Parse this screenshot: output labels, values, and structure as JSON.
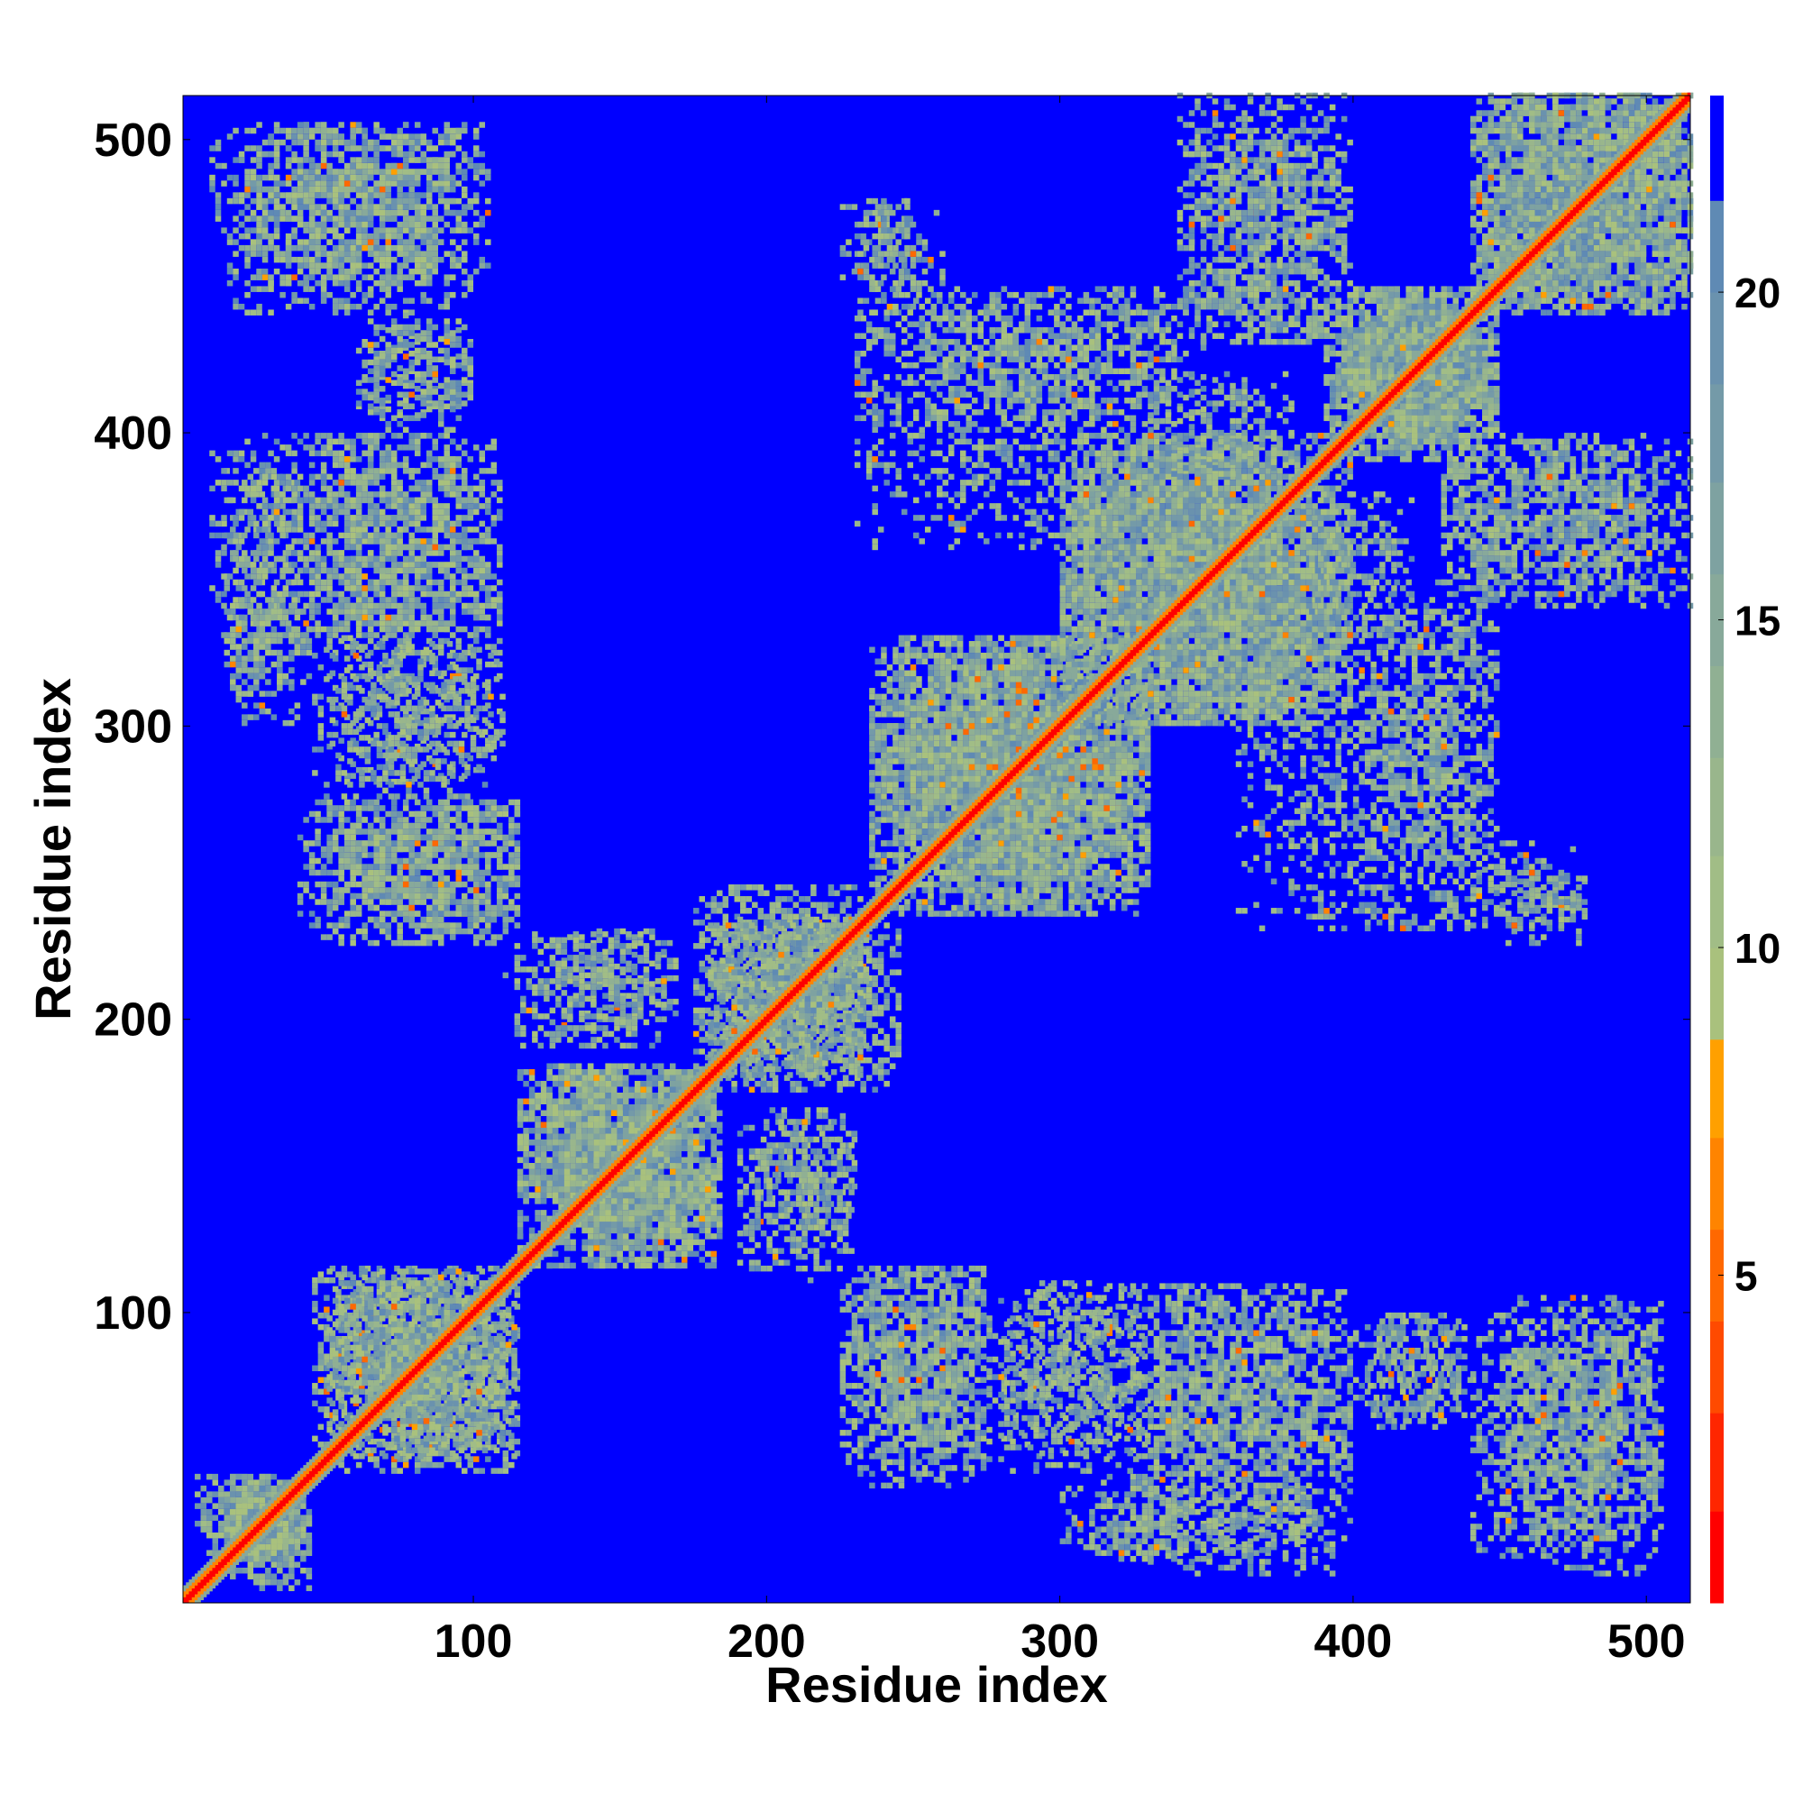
{
  "chart_data": {
    "type": "heatmap",
    "title": "",
    "xlabel": "Residue index",
    "ylabel": "Residue index",
    "n_residues": 515,
    "xlim": [
      1,
      515
    ],
    "ylim": [
      1,
      515
    ],
    "x_ticks": [
      100,
      200,
      300,
      400,
      500
    ],
    "y_ticks": [
      100,
      200,
      300,
      400,
      500
    ],
    "grid": false,
    "background_color": "#0000ff",
    "colorbar": {
      "ticks": [
        5,
        10,
        15,
        20
      ],
      "range": [
        0,
        23
      ],
      "bands": [
        {
          "from": 0.0,
          "to": 1.4,
          "color": "#ff0000"
        },
        {
          "from": 1.4,
          "to": 2.9,
          "color": "#ff2600"
        },
        {
          "from": 2.9,
          "to": 4.3,
          "color": "#ff4a00"
        },
        {
          "from": 4.3,
          "to": 5.7,
          "color": "#ff6800"
        },
        {
          "from": 5.7,
          "to": 7.1,
          "color": "#ff8400"
        },
        {
          "from": 7.1,
          "to": 8.6,
          "color": "#ffa000"
        },
        {
          "from": 8.6,
          "to": 10.0,
          "color": "#a9c17d"
        },
        {
          "from": 10.0,
          "to": 11.4,
          "color": "#a1bd86"
        },
        {
          "from": 11.4,
          "to": 12.9,
          "color": "#99b68c"
        },
        {
          "from": 12.9,
          "to": 14.3,
          "color": "#90b093"
        },
        {
          "from": 14.3,
          "to": 15.7,
          "color": "#88a99a"
        },
        {
          "from": 15.7,
          "to": 17.1,
          "color": "#7ea2a1"
        },
        {
          "from": 17.1,
          "to": 18.6,
          "color": "#749aa8"
        },
        {
          "from": 18.6,
          "to": 20.0,
          "color": "#6a92ae"
        },
        {
          "from": 20.0,
          "to": 21.4,
          "color": "#5f8ab4"
        },
        {
          "from": 21.4,
          "to": 23.0,
          "color": "#0000ff"
        }
      ]
    },
    "diagonal_color": "#ff0000",
    "contact_color": "#88a99a",
    "hot_color": "#ff8400",
    "domains": [
      {
        "start": 1,
        "end": 45
      },
      {
        "start": 45,
        "end": 115
      },
      {
        "start": 115,
        "end": 235
      },
      {
        "start": 235,
        "end": 400
      },
      {
        "start": 400,
        "end": 515
      }
    ],
    "contact_regions": [
      {
        "x": [
          5,
          45
        ],
        "y": [
          15,
          45
        ],
        "density": 0.8
      },
      {
        "x": [
          45,
          115
        ],
        "y": [
          50,
          115
        ],
        "density": 0.85
      },
      {
        "x": [
          115,
          185
        ],
        "y": [
          115,
          185
        ],
        "density": 0.85
      },
      {
        "x": [
          175,
          235
        ],
        "y": [
          180,
          245
        ],
        "density": 0.8
      },
      {
        "x": [
          235,
          330
        ],
        "y": [
          235,
          330
        ],
        "density": 0.85
      },
      {
        "x": [
          300,
          400
        ],
        "y": [
          300,
          400
        ],
        "density": 0.85
      },
      {
        "x": [
          390,
          450
        ],
        "y": [
          390,
          450
        ],
        "density": 0.8
      },
      {
        "x": [
          440,
          515
        ],
        "y": [
          440,
          515
        ],
        "density": 0.8
      },
      {
        "x": [
          50,
          115
        ],
        "y": [
          225,
          275
        ],
        "density": 0.55
      },
      {
        "x": [
          50,
          110
        ],
        "y": [
          280,
          400
        ],
        "density": 0.45
      },
      {
        "x": [
          15,
          40
        ],
        "y": [
          300,
          390
        ],
        "density": 0.45
      },
      {
        "x": [
          10,
          100
        ],
        "y": [
          440,
          505
        ],
        "density": 0.5
      },
      {
        "x": [
          60,
          100
        ],
        "y": [
          400,
          435
        ],
        "density": 0.45
      },
      {
        "x": [
          130,
          170
        ],
        "y": [
          195,
          230
        ],
        "density": 0.5
      },
      {
        "x": [
          190,
          230
        ],
        "y": [
          110,
          165
        ],
        "density": 0.5
      },
      {
        "x": [
          225,
          275
        ],
        "y": [
          40,
          115
        ],
        "density": 0.6
      },
      {
        "x": [
          275,
          330
        ],
        "y": [
          45,
          110
        ],
        "density": 0.45
      },
      {
        "x": [
          330,
          400
        ],
        "y": [
          10,
          110
        ],
        "density": 0.55
      },
      {
        "x": [
          405,
          440
        ],
        "y": [
          60,
          100
        ],
        "density": 0.45
      },
      {
        "x": [
          450,
          505
        ],
        "y": [
          20,
          105
        ],
        "density": 0.6
      },
      {
        "x": [
          310,
          340
        ],
        "y": [
          15,
          45
        ],
        "density": 0.45
      },
      {
        "x": [
          400,
          450
        ],
        "y": [
          230,
          350
        ],
        "density": 0.4
      },
      {
        "x": [
          450,
          480
        ],
        "y": [
          230,
          250
        ],
        "density": 0.4
      },
      {
        "x": [
          430,
          515
        ],
        "y": [
          340,
          400
        ],
        "density": 0.5
      },
      {
        "x": [
          230,
          340
        ],
        "y": [
          360,
          450
        ],
        "density": 0.35
      },
      {
        "x": [
          340,
          400
        ],
        "y": [
          430,
          500
        ],
        "density": 0.45
      },
      {
        "x": [
          450,
          500
        ],
        "y": [
          500,
          515
        ],
        "density": 0.45
      },
      {
        "x": [
          225,
          260
        ],
        "y": [
          440,
          480
        ],
        "density": 0.4
      },
      {
        "x": [
          385,
          420
        ],
        "y": [
          330,
          380
        ],
        "density": 0.35
      }
    ]
  }
}
